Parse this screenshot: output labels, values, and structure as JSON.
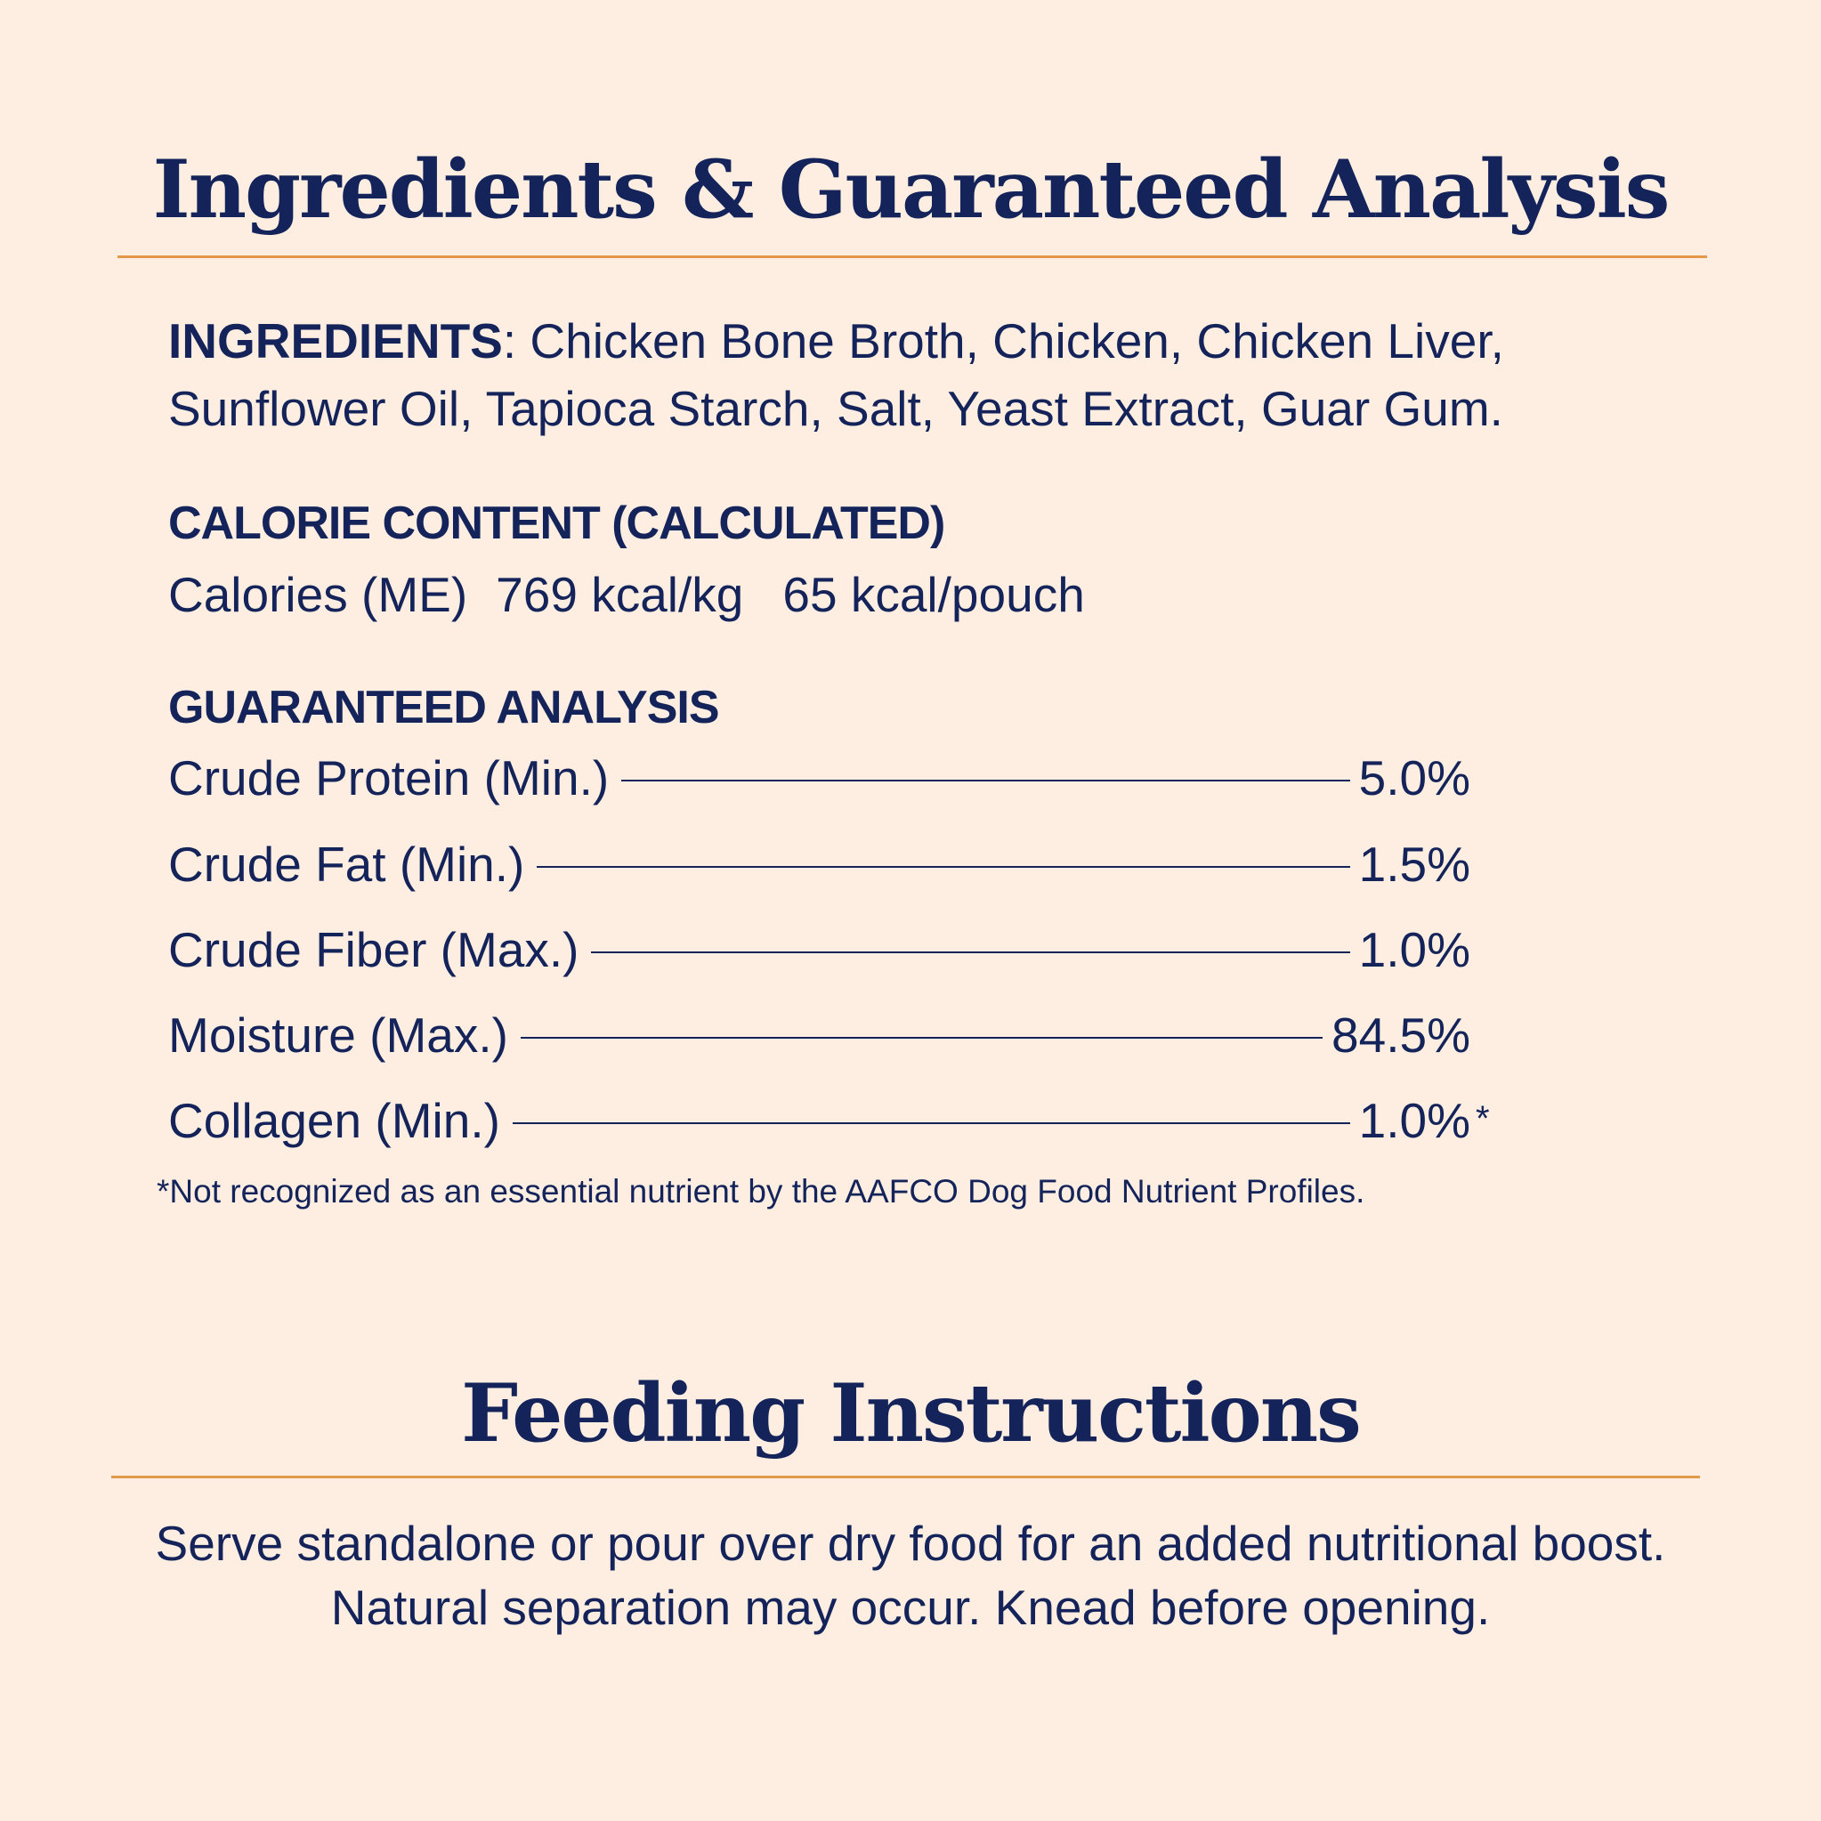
{
  "header": {
    "title": "Ingredients & Guaranteed Analysis"
  },
  "ingredients": {
    "label": "INGREDIENTS",
    "text": ": Chicken Bone Broth, Chicken, Chicken Liver, Sunflower Oil, Tapioca Starch, Salt, Yeast Extract, Guar Gum."
  },
  "calorie_content": {
    "heading": "CALORIE CONTENT (CALCULATED)",
    "label": "Calories (ME)",
    "per_kg": "769 kcal/kg",
    "per_pouch": "65 kcal/pouch"
  },
  "guaranteed_analysis": {
    "heading": "GUARANTEED ANALYSIS",
    "rows": [
      {
        "name": "Crude Protein (Min.)",
        "value": "5.0%"
      },
      {
        "name": "Crude Fat (Min.)",
        "value": "1.5%"
      },
      {
        "name": "Crude Fiber (Max.)",
        "value": "1.0%"
      },
      {
        "name": "Moisture (Max.)",
        "value": "84.5%"
      },
      {
        "name": "Collagen (Min.)",
        "value": "1.0%",
        "marker": "*"
      }
    ],
    "footnote": "*Not recognized as an essential nutrient by the AAFCO Dog Food Nutrient Profiles."
  },
  "feeding": {
    "title": "Feeding Instructions",
    "text": "Serve standalone or pour over dry food for an added nutritional boost. Natural separation may occur. Knead before opening."
  }
}
